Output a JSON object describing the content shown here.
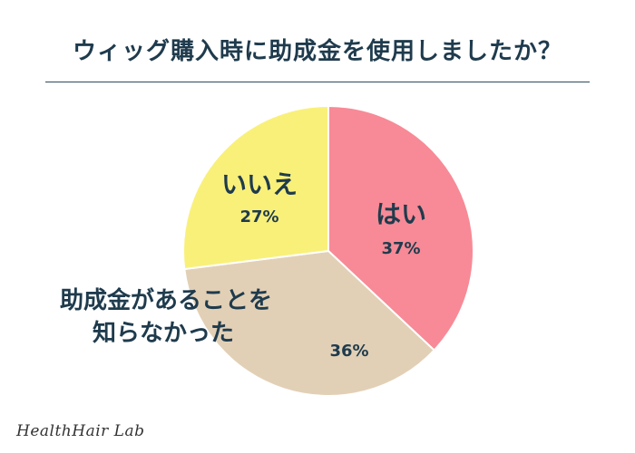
{
  "chart_data": {
    "type": "pie",
    "title": "ウィッグ購入時に助成金を使用しましたか？",
    "slices": [
      {
        "label": "はい",
        "value": 37,
        "pct_label": "37%",
        "color": "#f78a96"
      },
      {
        "label": "助成金があることを知らなかった",
        "label_lines": [
          "助成金があることを",
          "知らなかった"
        ],
        "value": 36,
        "pct_label": "36%",
        "color": "#e2d0b6"
      },
      {
        "label": "いいえ",
        "value": 27,
        "pct_label": "27%",
        "color": "#f9f07a"
      }
    ]
  },
  "branding": {
    "logo_text": "HealthHair Lab"
  }
}
